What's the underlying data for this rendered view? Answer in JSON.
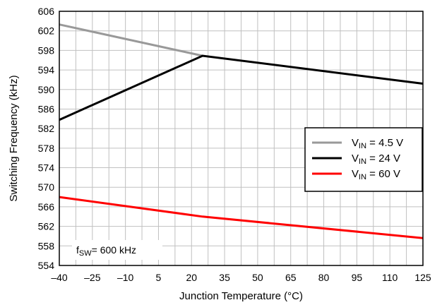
{
  "chart_data": {
    "type": "line",
    "xlabel": "Junction Temperature (°C)",
    "ylabel": "Switching Frequency (kHz)",
    "xlim": [
      -40,
      125
    ],
    "ylim": [
      554,
      606
    ],
    "xticks": [
      -40,
      -25,
      -10,
      5,
      20,
      35,
      50,
      65,
      80,
      95,
      110,
      125
    ],
    "xtick_labels": [
      "–40",
      "–25",
      "–10",
      "5",
      "20",
      "35",
      "50",
      "65",
      "80",
      "95",
      "110",
      "125"
    ],
    "yticks": [
      554,
      558,
      562,
      566,
      570,
      574,
      578,
      582,
      586,
      590,
      594,
      598,
      602,
      606
    ],
    "x_minor_step": 7.5,
    "grid": true,
    "legend_position": "right",
    "series": [
      {
        "key": "vin45",
        "name": "4.5 V",
        "name_prefix": "V",
        "name_sub": "IN",
        "name_eq": " = ",
        "color": "#999999",
        "x": [
          -40,
          25
        ],
        "y": [
          603.3,
          596.9
        ]
      },
      {
        "key": "vin24",
        "name": "24 V",
        "name_prefix": "V",
        "name_sub": "IN",
        "name_eq": " = ",
        "color": "#000000",
        "x": [
          -40,
          25,
          125
        ],
        "y": [
          583.8,
          596.9,
          591.2
        ]
      },
      {
        "key": "vin60",
        "name": "60 V",
        "name_prefix": "V",
        "name_sub": "IN",
        "name_eq": " = ",
        "color": "#ff0000",
        "x": [
          -40,
          25,
          125
        ],
        "y": [
          568.0,
          564.0,
          559.6
        ]
      }
    ],
    "annotation": {
      "prefix": "f",
      "sub": "SW",
      "text": "=  600 kHz"
    }
  }
}
